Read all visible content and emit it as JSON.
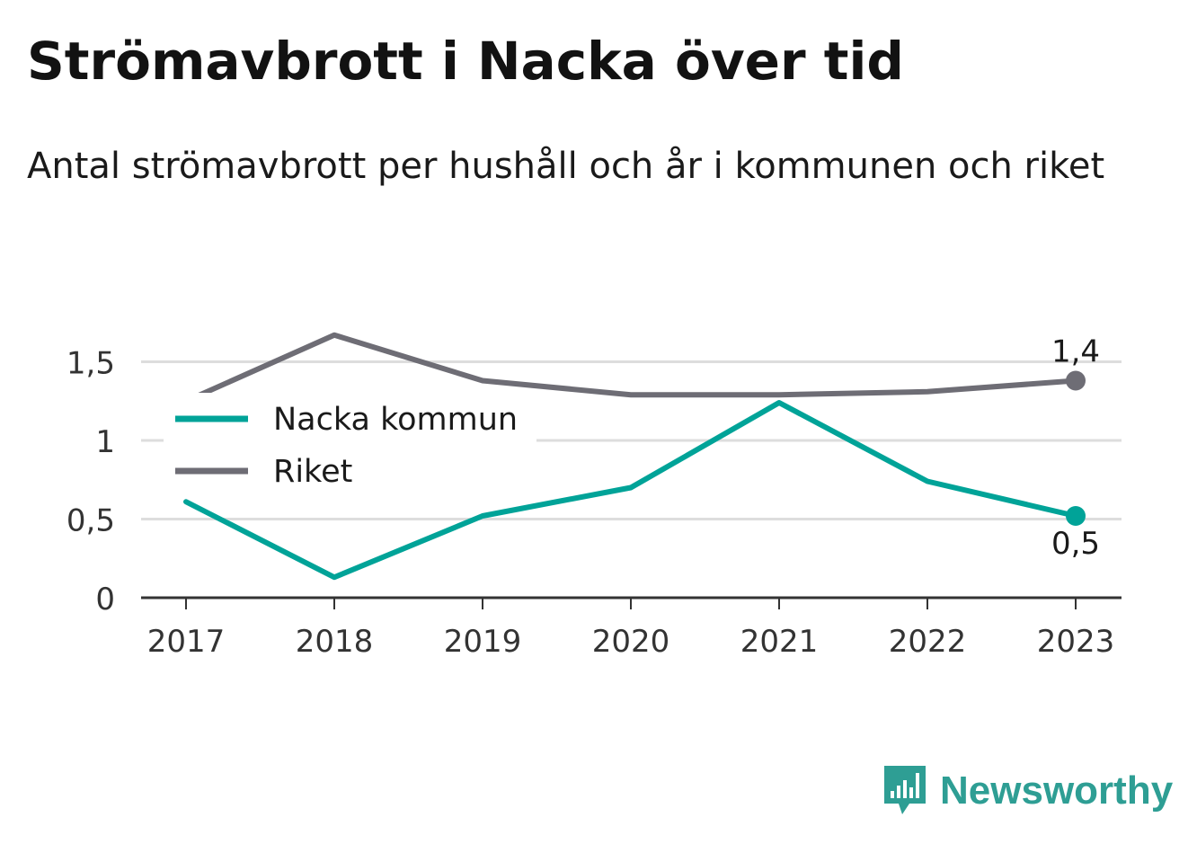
{
  "header": {
    "title": "Strömavbrott i Nacka över tid",
    "subtitle": "Antal strömavbrott per hushåll och år i kommunen och riket"
  },
  "chart_data": {
    "type": "line",
    "title": "Strömavbrott i Nacka över tid",
    "subtitle": "Antal strömavbrott per hushåll och år i kommunen och riket",
    "xlabel": "",
    "ylabel": "",
    "x": [
      "2017",
      "2018",
      "2019",
      "2020",
      "2021",
      "2022",
      "2023"
    ],
    "ylim": [
      0,
      1.75
    ],
    "yticks": [
      0,
      0.5,
      1,
      1.5
    ],
    "ytick_labels": [
      "0",
      "0,5",
      "1",
      "1,5"
    ],
    "grid": true,
    "legend_position": "top-left",
    "series": [
      {
        "name": "Nacka kommun",
        "color": "#00a398",
        "values": [
          0.61,
          0.13,
          0.52,
          0.7,
          1.24,
          0.74,
          0.52
        ],
        "end_label": "0,5"
      },
      {
        "name": "Riket",
        "color": "#6e6d75",
        "values": [
          1.25,
          1.67,
          1.38,
          1.29,
          1.29,
          1.31,
          1.38
        ],
        "end_label": "1,4"
      }
    ]
  },
  "brand": {
    "name": "Newsworthy",
    "color": "#2e9e94",
    "icon": "bar-chart-speech-bubble-icon"
  }
}
